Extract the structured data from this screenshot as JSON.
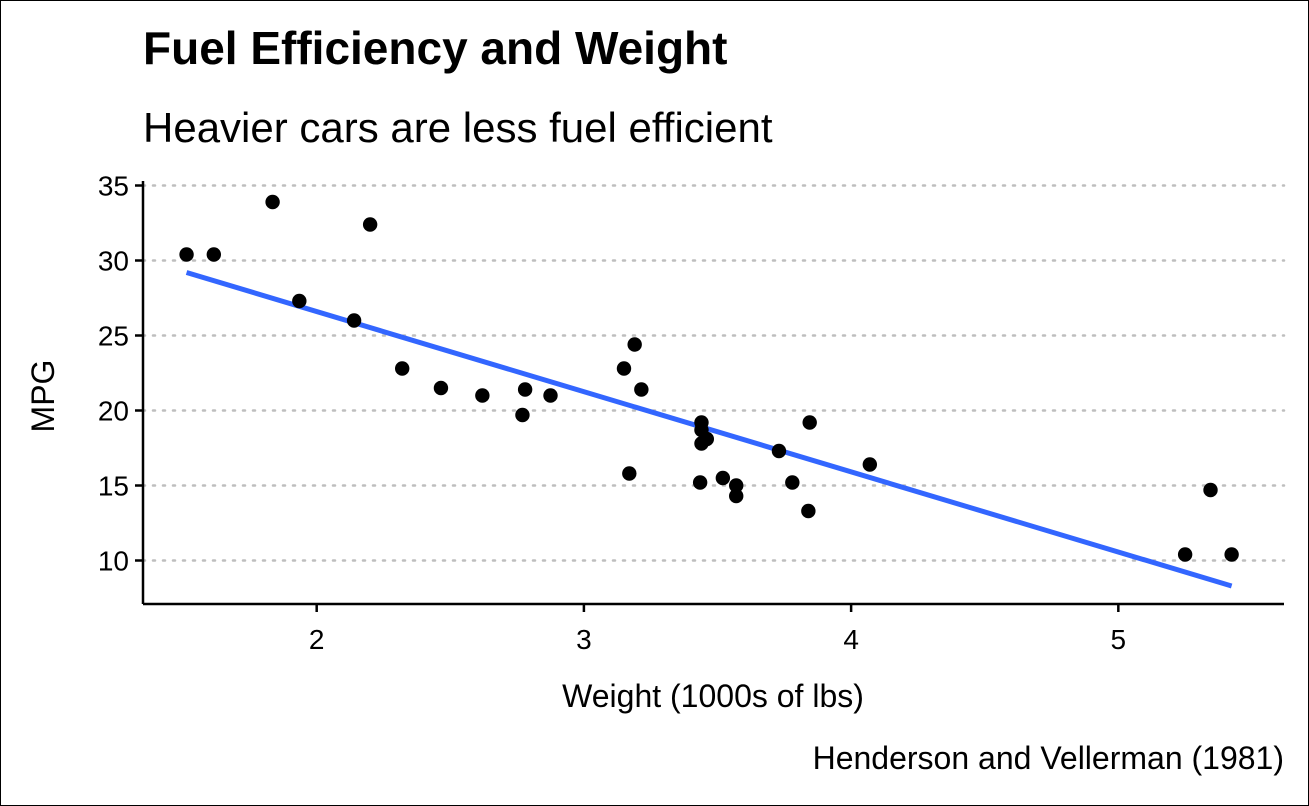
{
  "title": "Fuel Efficiency and Weight",
  "subtitle": "Heavier cars are less fuel efficient",
  "caption": "Henderson and Vellerman (1981)",
  "colors": {
    "points": "#000000",
    "trend_line": "#3366ff",
    "grid": "#bebebe"
  },
  "chart_data": {
    "type": "scatter",
    "title": "Fuel Efficiency and Weight",
    "subtitle": "Heavier cars are less fuel efficient",
    "xlabel": "Weight (1000s of lbs)",
    "ylabel": "MPG",
    "xlim": [
      1.35,
      5.62
    ],
    "ylim": [
      7.1,
      35.3
    ],
    "x_ticks": [
      2,
      3,
      4,
      5
    ],
    "y_ticks": [
      10,
      15,
      20,
      25,
      30,
      35
    ],
    "grid": {
      "major_y": "dotted",
      "x": false
    },
    "points": [
      {
        "x": 2.62,
        "y": 21.0
      },
      {
        "x": 2.875,
        "y": 21.0
      },
      {
        "x": 2.32,
        "y": 22.8
      },
      {
        "x": 3.215,
        "y": 21.4
      },
      {
        "x": 3.44,
        "y": 18.7
      },
      {
        "x": 3.46,
        "y": 18.1
      },
      {
        "x": 3.57,
        "y": 14.3
      },
      {
        "x": 3.19,
        "y": 24.4
      },
      {
        "x": 3.15,
        "y": 22.8
      },
      {
        "x": 3.44,
        "y": 19.2
      },
      {
        "x": 3.44,
        "y": 17.8
      },
      {
        "x": 4.07,
        "y": 16.4
      },
      {
        "x": 3.73,
        "y": 17.3
      },
      {
        "x": 3.78,
        "y": 15.2
      },
      {
        "x": 5.25,
        "y": 10.4
      },
      {
        "x": 5.424,
        "y": 10.4
      },
      {
        "x": 5.345,
        "y": 14.7
      },
      {
        "x": 2.2,
        "y": 32.4
      },
      {
        "x": 1.615,
        "y": 30.4
      },
      {
        "x": 1.835,
        "y": 33.9
      },
      {
        "x": 2.465,
        "y": 21.5
      },
      {
        "x": 3.52,
        "y": 15.5
      },
      {
        "x": 3.435,
        "y": 15.2
      },
      {
        "x": 3.84,
        "y": 13.3
      },
      {
        "x": 3.845,
        "y": 19.2
      },
      {
        "x": 1.935,
        "y": 27.3
      },
      {
        "x": 2.14,
        "y": 26.0
      },
      {
        "x": 1.513,
        "y": 30.4
      },
      {
        "x": 3.17,
        "y": 15.8
      },
      {
        "x": 2.77,
        "y": 19.7
      },
      {
        "x": 3.57,
        "y": 15.0
      },
      {
        "x": 2.78,
        "y": 21.4
      }
    ],
    "trend_line": {
      "method": "linear",
      "x": [
        1.513,
        5.424
      ],
      "y": [
        29.2,
        8.3
      ]
    }
  }
}
